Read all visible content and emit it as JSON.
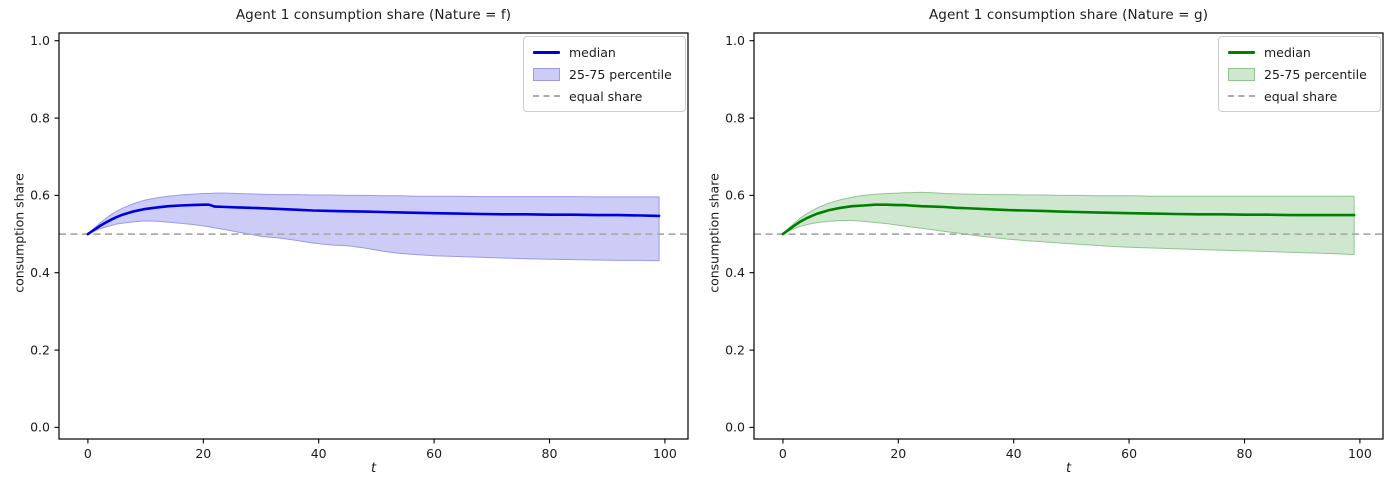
{
  "figure": {
    "background": "#ffffff"
  },
  "chart_data": [
    {
      "type": "line",
      "title": "Agent 1 consumption share (Nature = f)",
      "xlabel": "t",
      "ylabel": "consumption share",
      "xlim": [
        -5,
        104
      ],
      "ylim": [
        -0.03,
        1.02
      ],
      "grid": false,
      "xticks": [
        0,
        20,
        40,
        60,
        80,
        100
      ],
      "yticks": [
        0.0,
        0.2,
        0.4,
        0.6,
        0.8,
        1.0
      ],
      "ytick_labels": [
        "0.0",
        "0.2",
        "0.4",
        "0.6",
        "0.8",
        "1.0"
      ],
      "legend": {
        "position": "upper right",
        "entries": [
          "median",
          "25-75 percentile",
          "equal share"
        ]
      },
      "colors": {
        "median": "#0000dd",
        "band_fill": "#ccccf7",
        "band_edge": "#9a9aec",
        "equal_share": "#ababab"
      },
      "x": [
        0,
        1,
        2,
        3,
        4,
        5,
        6,
        8,
        10,
        12,
        14,
        16,
        18,
        20,
        21,
        22,
        24,
        26,
        28,
        30,
        33,
        36,
        39,
        42,
        45,
        48,
        51,
        54,
        57,
        60,
        64,
        68,
        72,
        76,
        80,
        84,
        88,
        92,
        96,
        99
      ],
      "series": [
        {
          "name": "median",
          "role": "median",
          "values": [
            0.5,
            0.51,
            0.52,
            0.529,
            0.537,
            0.544,
            0.55,
            0.559,
            0.565,
            0.569,
            0.572,
            0.574,
            0.575,
            0.576,
            0.576,
            0.571,
            0.57,
            0.569,
            0.568,
            0.567,
            0.565,
            0.563,
            0.561,
            0.56,
            0.559,
            0.558,
            0.557,
            0.556,
            0.555,
            0.554,
            0.553,
            0.552,
            0.551,
            0.551,
            0.55,
            0.55,
            0.549,
            0.549,
            0.548,
            0.547
          ]
        },
        {
          "name": "75th percentile",
          "role": "band_upper",
          "values": [
            0.5,
            0.514,
            0.527,
            0.539,
            0.55,
            0.559,
            0.567,
            0.579,
            0.588,
            0.594,
            0.598,
            0.601,
            0.603,
            0.605,
            0.605,
            0.606,
            0.606,
            0.605,
            0.604,
            0.603,
            0.602,
            0.602,
            0.601,
            0.601,
            0.6,
            0.6,
            0.599,
            0.599,
            0.598,
            0.598,
            0.598,
            0.597,
            0.597,
            0.597,
            0.597,
            0.597,
            0.596,
            0.596,
            0.596,
            0.596
          ]
        },
        {
          "name": "25th percentile",
          "role": "band_lower",
          "values": [
            0.5,
            0.507,
            0.513,
            0.518,
            0.522,
            0.526,
            0.528,
            0.532,
            0.534,
            0.533,
            0.531,
            0.528,
            0.525,
            0.521,
            0.519,
            0.516,
            0.511,
            0.505,
            0.5,
            0.494,
            0.49,
            0.484,
            0.477,
            0.472,
            0.47,
            0.464,
            0.456,
            0.45,
            0.447,
            0.444,
            0.442,
            0.44,
            0.438,
            0.436,
            0.435,
            0.434,
            0.433,
            0.432,
            0.432,
            0.431
          ]
        },
        {
          "name": "equal share",
          "role": "hline",
          "value": 0.5
        }
      ]
    },
    {
      "type": "line",
      "title": "Agent 1 consumption share (Nature = g)",
      "xlabel": "t",
      "ylabel": "consumption share",
      "xlim": [
        -5,
        104
      ],
      "ylim": [
        -0.03,
        1.02
      ],
      "grid": false,
      "xticks": [
        0,
        20,
        40,
        60,
        80,
        100
      ],
      "yticks": [
        0.0,
        0.2,
        0.4,
        0.6,
        0.8,
        1.0
      ],
      "ytick_labels": [
        "0.0",
        "0.2",
        "0.4",
        "0.6",
        "0.8",
        "1.0"
      ],
      "legend": {
        "position": "upper right",
        "entries": [
          "median",
          "25-75 percentile",
          "equal share"
        ]
      },
      "colors": {
        "median": "#008000",
        "band_fill": "#cfe7cf",
        "band_edge": "#8fc68f",
        "equal_share": "#ababab"
      },
      "x": [
        0,
        1,
        2,
        3,
        4,
        5,
        6,
        8,
        10,
        12,
        14,
        16,
        18,
        20,
        21,
        22,
        24,
        26,
        28,
        30,
        33,
        36,
        39,
        42,
        45,
        48,
        51,
        54,
        57,
        60,
        64,
        68,
        72,
        76,
        80,
        84,
        88,
        92,
        96,
        99
      ],
      "series": [
        {
          "name": "median",
          "role": "median",
          "values": [
            0.5,
            0.511,
            0.522,
            0.532,
            0.54,
            0.547,
            0.553,
            0.562,
            0.568,
            0.572,
            0.574,
            0.576,
            0.576,
            0.575,
            0.575,
            0.574,
            0.572,
            0.571,
            0.57,
            0.568,
            0.566,
            0.564,
            0.562,
            0.561,
            0.56,
            0.558,
            0.557,
            0.556,
            0.555,
            0.554,
            0.553,
            0.552,
            0.551,
            0.551,
            0.55,
            0.55,
            0.549,
            0.549,
            0.549,
            0.549
          ]
        },
        {
          "name": "75th percentile",
          "role": "band_upper",
          "values": [
            0.5,
            0.515,
            0.528,
            0.541,
            0.551,
            0.56,
            0.568,
            0.58,
            0.589,
            0.595,
            0.6,
            0.603,
            0.605,
            0.606,
            0.607,
            0.607,
            0.608,
            0.607,
            0.605,
            0.604,
            0.603,
            0.602,
            0.602,
            0.601,
            0.601,
            0.6,
            0.6,
            0.599,
            0.599,
            0.599,
            0.598,
            0.598,
            0.598,
            0.598,
            0.598,
            0.598,
            0.598,
            0.598,
            0.598,
            0.598
          ]
        },
        {
          "name": "25th percentile",
          "role": "band_lower",
          "values": [
            0.5,
            0.508,
            0.514,
            0.52,
            0.524,
            0.527,
            0.53,
            0.533,
            0.535,
            0.535,
            0.533,
            0.53,
            0.527,
            0.523,
            0.521,
            0.519,
            0.515,
            0.511,
            0.507,
            0.503,
            0.497,
            0.492,
            0.487,
            0.483,
            0.48,
            0.477,
            0.474,
            0.471,
            0.468,
            0.466,
            0.464,
            0.462,
            0.46,
            0.458,
            0.457,
            0.455,
            0.453,
            0.451,
            0.449,
            0.447
          ]
        },
        {
          "name": "equal share",
          "role": "hline",
          "value": 0.5
        }
      ]
    }
  ]
}
